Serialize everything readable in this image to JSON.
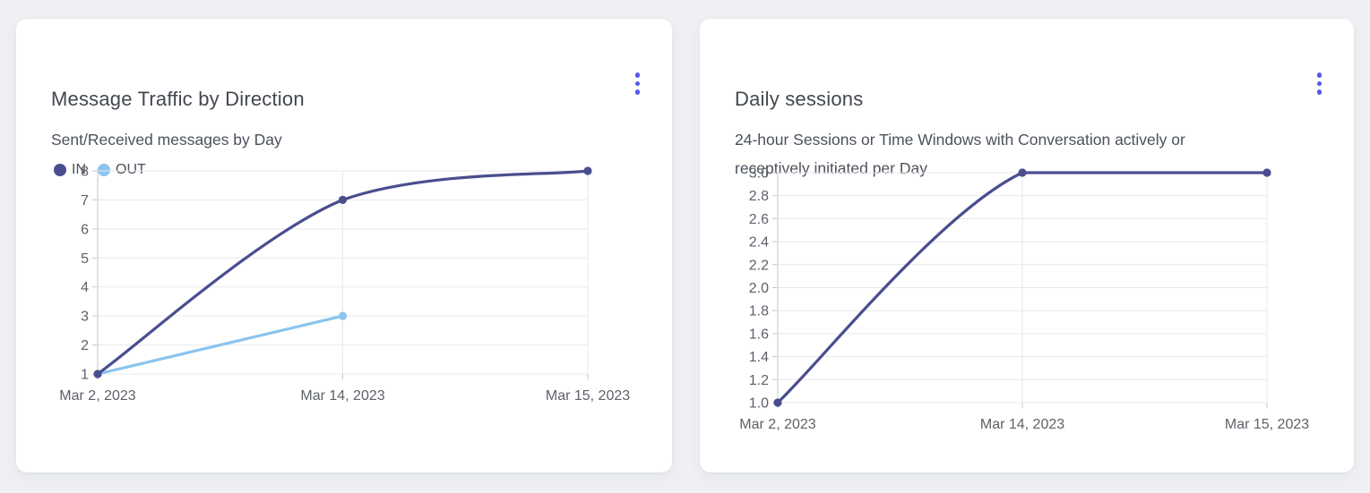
{
  "page": {
    "background_color": "#eef0f3",
    "accent_color": "#5457ee"
  },
  "cards": [
    {
      "title": "Message Traffic by Direction",
      "subtitle": "Sent/Received messages by Day",
      "menu_icon": "kebab-menu",
      "menu_color": "#5457ee",
      "legend": [
        {
          "label": "IN",
          "color": "#4a4e8f"
        },
        {
          "label": "OUT",
          "color": "#8ac4ef"
        }
      ]
    },
    {
      "title": "Daily sessions",
      "subtitle_lines": [
        "24-hour Sessions or Time Windows with Conversation actively or",
        "receptively initiated per Day"
      ],
      "menu_icon": "kebab-menu",
      "menu_color": "#5457ee"
    }
  ],
  "chart_data": [
    {
      "type": "line",
      "title": "Message Traffic by Direction",
      "subtitle": "Sent/Received messages by Day",
      "categories": [
        "Mar 2, 2023",
        "Mar 14, 2023",
        "Mar 15, 2023"
      ],
      "x_positions": [
        0,
        0.5,
        1
      ],
      "series": [
        {
          "name": "IN",
          "color": "#4a4e8f",
          "values": [
            1,
            7,
            8
          ]
        },
        {
          "name": "OUT",
          "color": "#8ac4ef",
          "values": [
            1,
            3,
            null
          ]
        }
      ],
      "ylim": [
        1,
        8
      ],
      "y_ticks": [
        "8",
        "7",
        "6",
        "5",
        "4",
        "3",
        "2",
        "1"
      ],
      "grid": true,
      "smooth": true,
      "legend_position": "top-left"
    },
    {
      "type": "line",
      "title": "Daily sessions",
      "subtitle": "24-hour Sessions or Time Windows with Conversation actively or receptively initiated per Day",
      "categories": [
        "Mar 2, 2023",
        "Mar 14, 2023",
        "Mar 15, 2023"
      ],
      "x_positions": [
        0,
        0.5,
        1
      ],
      "series": [
        {
          "name": "Daily sessions",
          "color": "#4a4e8f",
          "values": [
            1.0,
            3.0,
            3.0
          ]
        }
      ],
      "ylim": [
        1.0,
        3.0
      ],
      "y_ticks": [
        "3.0",
        "2.8",
        "2.6",
        "2.4",
        "2.2",
        "2.0",
        "1.8",
        "1.6",
        "1.4",
        "1.2",
        "1.0"
      ],
      "grid": true,
      "smooth": true,
      "legend_position": "none"
    }
  ]
}
